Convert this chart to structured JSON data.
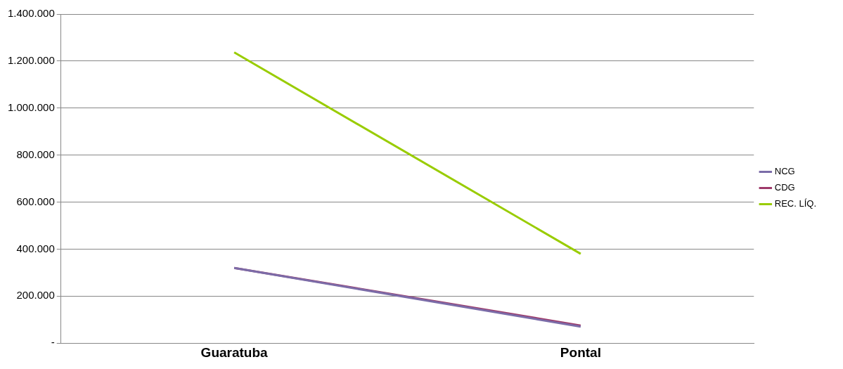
{
  "chart_data": {
    "type": "line",
    "categories": [
      "Guaratuba",
      "Pontal"
    ],
    "series": [
      {
        "name": "NCG",
        "color": "#7b6ca8",
        "values": [
          320000,
          70000
        ]
      },
      {
        "name": "CDG",
        "color": "#9e3a6a",
        "values": [
          320000,
          75000
        ]
      },
      {
        "name": "REC. LÍQ.",
        "color": "#99cc00",
        "values": [
          1237000,
          380000
        ]
      }
    ],
    "ylim": [
      0,
      1400000
    ],
    "yticks": [
      {
        "value": 0,
        "label": "-"
      },
      {
        "value": 200000,
        "label": "200.000"
      },
      {
        "value": 400000,
        "label": "400.000"
      },
      {
        "value": 600000,
        "label": "600.000"
      },
      {
        "value": 800000,
        "label": "800.000"
      },
      {
        "value": 1000000,
        "label": "1.000.000"
      },
      {
        "value": 1200000,
        "label": "1.200.000"
      },
      {
        "value": 1400000,
        "label": "1.400.000"
      }
    ],
    "grid": "y",
    "legend": "right",
    "marker": "none",
    "line_style": "solid"
  }
}
